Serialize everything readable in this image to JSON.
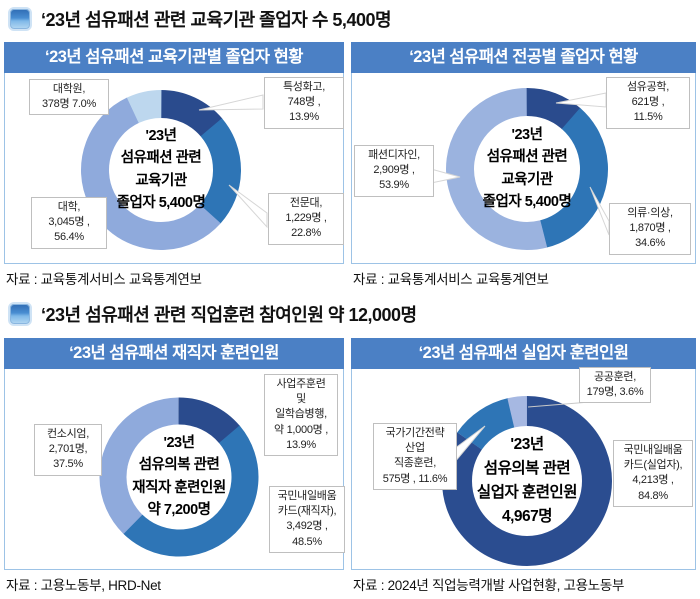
{
  "colors": {
    "navy": "#2a4b8d",
    "medium_blue": "#2e75b6",
    "periwinkle": "#8faadc",
    "pale_blue": "#bdd7ee",
    "title_bar": "#4b80c5",
    "panel_border": "#9dc3e6",
    "callout_border": "#bfbfbf"
  },
  "sections": [
    {
      "header": "‘23년 섬유패션 관련 교육기관 졸업자 수 5,400명"
    },
    {
      "header": "‘23년 섬유패션 관련 직업훈련 참여인원 약 12,000명"
    }
  ],
  "chart_data": [
    {
      "type": "pie",
      "donut": true,
      "title": "‘23년 섬유패션 교육기관별 졸업자 현황",
      "center_label": "'23년\n섬유패션 관련\n교육기관\n졸업자 5,400명",
      "total": 5400,
      "unit": "명",
      "segments": [
        {
          "name": "특성화고",
          "value": 748,
          "pct": 13.9,
          "color": "#2a4b8d",
          "callout": "특성화고,\n748명 ,\n13.9%"
        },
        {
          "name": "전문대",
          "value": 1229,
          "pct": 22.8,
          "color": "#2e75b6",
          "callout": "전문대,\n1,229명 ,\n22.8%"
        },
        {
          "name": "대학",
          "value": 3045,
          "pct": 56.4,
          "color": "#8faadc",
          "callout": "대학,\n3,045명 ,\n56.4%"
        },
        {
          "name": "대학원",
          "value": 378,
          "pct": 7.0,
          "color": "#bdd7ee",
          "callout": "대학원,\n378명 7.0%"
        }
      ],
      "source": "자료 : 교육통계서비스 교육통계연보"
    },
    {
      "type": "pie",
      "donut": true,
      "title": "‘23년 섬유패션 전공별 졸업자 현황",
      "center_label": "'23년\n섬유패션 관련\n교육기관\n졸업자 5,400명",
      "total": 5400,
      "unit": "명",
      "segments": [
        {
          "name": "섬유공학",
          "value": 621,
          "pct": 11.5,
          "color": "#2a4b8d",
          "callout": "섬유공학,\n621명 ,\n11.5%"
        },
        {
          "name": "의류·의상",
          "value": 1870,
          "pct": 34.6,
          "color": "#2e75b6",
          "callout": "의류·의상,\n1,870명 ,\n34.6%"
        },
        {
          "name": "패션디자인",
          "value": 2909,
          "pct": 53.9,
          "color": "#9bb3df",
          "callout": "패션디자인,\n2,909명 ,\n53.9%"
        }
      ],
      "source": "자료 : 교육통계서비스 교육통계연보"
    },
    {
      "type": "pie",
      "donut": true,
      "title": "‘23년 섬유패션 재직자 훈련인원",
      "center_label": "'23년\n섬유의복 관련\n재직자 훈련인원\n약 7,200명",
      "total": 7200,
      "unit": "명",
      "segments": [
        {
          "name": "사업주훈련 및 일학습병행",
          "value": 1000,
          "pct": 13.9,
          "color": "#2a4b8d",
          "callout": "사업주훈련\n및\n일학습병행,\n약 1,000명 ,\n13.9%"
        },
        {
          "name": "국민내일배움카드(재직자)",
          "value": 3492,
          "pct": 48.5,
          "color": "#2e75b6",
          "callout": "국민내일배움\n카드(재직자),\n3,492명 ,\n48.5%"
        },
        {
          "name": "컨소시엄",
          "value": 2701,
          "pct": 37.5,
          "color": "#8faadc",
          "callout": "컨소시엄,\n2,701명,\n37.5%"
        }
      ],
      "source": "자료 : 고용노동부, HRD-Net"
    },
    {
      "type": "pie",
      "donut": true,
      "title": "‘23년 섬유패션 실업자 훈련인원",
      "center_label": "'23년\n섬유의복 관련\n실업자 훈련인원\n4,967명",
      "total": 4967,
      "unit": "명",
      "segments": [
        {
          "name": "국민내일배움카드(실업자)",
          "value": 4213,
          "pct": 84.8,
          "color": "#2b4d90",
          "callout": "국민내일배움\n카드(실업자),\n4,213명 ,\n84.8%"
        },
        {
          "name": "국가기간전략산업 직종훈련",
          "value": 575,
          "pct": 11.6,
          "color": "#2e75b6",
          "callout": "국가기간전략\n산업\n직종훈련,\n575명 , 11.6%"
        },
        {
          "name": "공공훈련",
          "value": 179,
          "pct": 3.6,
          "color": "#a6b8e2",
          "callout": "공공훈련,\n179명, 3.6%"
        }
      ],
      "source": "자료 : 2024년 직업능력개발 사업현황, 고용노동부"
    }
  ]
}
